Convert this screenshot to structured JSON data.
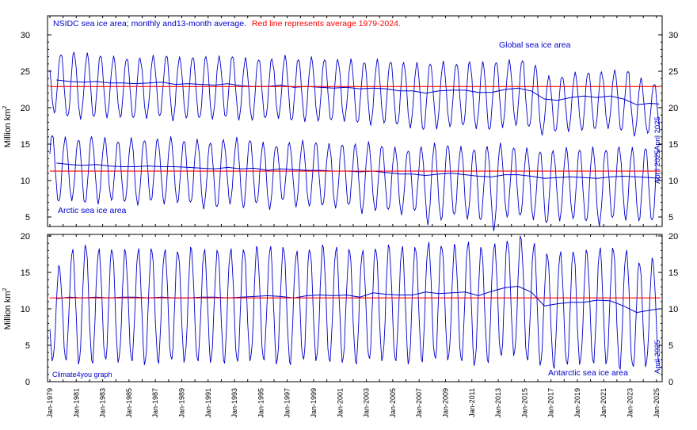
{
  "title": {
    "main": "NSIDC sea ice area; monthly and13-month average.",
    "red_note": "Red line represents average 1979-2024."
  },
  "credit": "Climate4you graph",
  "colors": {
    "series": "#0000cc",
    "average_line": "#ff0000",
    "axis": "#000000",
    "label_blue": "#0000cc"
  },
  "chart_data": [
    {
      "type": "line",
      "panel": "top",
      "ylabel": "Million km",
      "ylabel_sup": "2",
      "ylim": [
        5,
        30
      ],
      "yticks": [
        5,
        10,
        15,
        20,
        25,
        30
      ],
      "series": [
        {
          "name": "Global sea ice area",
          "end_label": "April 2025",
          "average_1979_2024": 22.9,
          "annual": {
            "years": [
              1979,
              1980,
              1981,
              1982,
              1983,
              1984,
              1985,
              1986,
              1987,
              1988,
              1989,
              1990,
              1991,
              1992,
              1993,
              1994,
              1995,
              1996,
              1997,
              1998,
              1999,
              2000,
              2001,
              2002,
              2003,
              2004,
              2005,
              2006,
              2007,
              2008,
              2009,
              2010,
              2011,
              2012,
              2013,
              2014,
              2015,
              2016,
              2017,
              2018,
              2019,
              2020,
              2021,
              2022,
              2023,
              2024,
              2025
            ],
            "max": [
              27.5,
              27.6,
              27.3,
              27.2,
              27.0,
              26.9,
              26.8,
              27.0,
              27.2,
              26.9,
              27.1,
              27.0,
              26.9,
              27.1,
              26.8,
              26.8,
              26.7,
              27.0,
              26.7,
              26.9,
              26.8,
              26.6,
              26.5,
              26.3,
              26.6,
              26.5,
              26.2,
              26.0,
              26.1,
              26.3,
              26.2,
              26.3,
              26.1,
              26.3,
              26.5,
              26.7,
              25.8,
              24.2,
              24.3,
              24.8,
              25.0,
              24.9,
              25.0,
              25.1,
              24.0,
              23.4,
              22.8
            ],
            "min": [
              19.3,
              18.6,
              18.5,
              18.7,
              18.8,
              18.7,
              18.4,
              18.6,
              18.8,
              18.4,
              18.6,
              18.4,
              18.5,
              18.7,
              18.5,
              18.3,
              18.4,
              18.6,
              18.2,
              18.3,
              18.2,
              18.1,
              18.2,
              17.9,
              17.8,
              17.9,
              17.5,
              17.3,
              16.9,
              17.3,
              17.4,
              17.4,
              17.2,
              16.9,
              17.5,
              17.6,
              17.2,
              16.3,
              16.7,
              16.9,
              16.9,
              16.9,
              17.2,
              16.8,
              16.3,
              16.5,
              16.4
            ],
            "avg13": [
              23.8,
              23.6,
              23.5,
              23.6,
              23.4,
              23.4,
              23.3,
              23.4,
              23.5,
              23.2,
              23.3,
              23.2,
              23.1,
              23.3,
              23.0,
              22.9,
              22.9,
              23.1,
              22.8,
              22.9,
              22.8,
              22.7,
              22.8,
              22.6,
              22.7,
              22.6,
              22.3,
              22.3,
              22.0,
              22.3,
              22.4,
              22.4,
              22.1,
              22.1,
              22.5,
              22.7,
              22.3,
              21.2,
              21.0,
              21.4,
              21.6,
              21.4,
              21.6,
              21.2,
              20.4,
              20.6,
              20.5
            ]
          }
        },
        {
          "name": "Arctic sea ice area",
          "end_label": "April 2025",
          "average_1979_2024": 11.3,
          "annual": {
            "years": [
              1979,
              1980,
              1981,
              1982,
              1983,
              1984,
              1985,
              1986,
              1987,
              1988,
              1989,
              1990,
              1991,
              1992,
              1993,
              1994,
              1995,
              1996,
              1997,
              1998,
              1999,
              2000,
              2001,
              2002,
              2003,
              2004,
              2005,
              2006,
              2007,
              2008,
              2009,
              2010,
              2011,
              2012,
              2013,
              2014,
              2015,
              2016,
              2017,
              2018,
              2019,
              2020,
              2021,
              2022,
              2023,
              2024,
              2025
            ],
            "max": [
              16.3,
              15.9,
              15.8,
              16.0,
              15.7,
              15.4,
              15.8,
              15.7,
              15.7,
              15.8,
              15.5,
              15.6,
              15.4,
              15.6,
              15.7,
              15.6,
              15.2,
              14.9,
              15.2,
              15.3,
              15.3,
              15.0,
              15.1,
              15.0,
              15.1,
              14.8,
              14.5,
              14.3,
              14.6,
              14.9,
              14.9,
              14.6,
              14.5,
              14.7,
              14.9,
              14.6,
              14.4,
              14.2,
              14.1,
              14.3,
              14.3,
              14.5,
              14.4,
              14.6,
              14.3,
              14.5,
              14.0
            ],
            "min": [
              6.9,
              7.3,
              6.9,
              7.0,
              7.3,
              6.9,
              6.7,
              7.2,
              7.0,
              7.0,
              6.8,
              6.2,
              6.3,
              7.0,
              6.3,
              6.7,
              6.1,
              7.3,
              6.6,
              6.5,
              6.4,
              6.3,
              6.6,
              5.7,
              5.9,
              5.8,
              5.4,
              5.8,
              4.2,
              4.6,
              5.1,
              4.8,
              4.5,
              3.4,
              5.0,
              5.0,
              4.7,
              4.1,
              4.7,
              4.8,
              4.2,
              3.9,
              4.8,
              4.8,
              4.5,
              4.3,
              12.5
            ],
            "avg13": [
              12.4,
              12.2,
              12.1,
              12.2,
              12.0,
              11.9,
              11.9,
              12.0,
              11.9,
              11.9,
              11.8,
              11.7,
              11.6,
              11.8,
              11.6,
              11.7,
              11.4,
              11.6,
              11.5,
              11.4,
              11.4,
              11.3,
              11.3,
              11.2,
              11.3,
              11.1,
              10.9,
              10.9,
              10.7,
              10.9,
              11.0,
              10.8,
              10.6,
              10.5,
              10.8,
              10.8,
              10.6,
              10.3,
              10.4,
              10.5,
              10.4,
              10.3,
              10.5,
              10.6,
              10.5,
              10.4,
              10.3
            ]
          }
        }
      ]
    },
    {
      "type": "line",
      "panel": "bottom",
      "ylabel": "Million km",
      "ylabel_sup": "2",
      "ylim": [
        0,
        20
      ],
      "yticks": [
        0,
        5,
        10,
        15,
        20
      ],
      "series": [
        {
          "name": "Antarctic sea ice area",
          "end_label": "April 2025",
          "average_1979_2024": 11.5,
          "annual": {
            "years": [
              1979,
              1980,
              1981,
              1982,
              1983,
              1984,
              1985,
              1986,
              1987,
              1988,
              1989,
              1990,
              1991,
              1992,
              1993,
              1994,
              1995,
              1996,
              1997,
              1998,
              1999,
              2000,
              2001,
              2002,
              2003,
              2004,
              2005,
              2006,
              2007,
              2008,
              2009,
              2010,
              2011,
              2012,
              2013,
              2014,
              2015,
              2016,
              2017,
              2018,
              2019,
              2020,
              2021,
              2022,
              2023,
              2024,
              2025
            ],
            "max": [
              15.8,
              18.0,
              18.8,
              18.3,
              18.4,
              18.0,
              18.1,
              18.3,
              18.2,
              18.1,
              18.3,
              18.0,
              18.1,
              18.3,
              18.4,
              18.4,
              18.4,
              18.5,
              18.0,
              18.4,
              18.6,
              18.3,
              18.2,
              18.1,
              18.5,
              18.6,
              18.4,
              18.5,
              19.2,
              18.9,
              18.7,
              19.0,
              18.5,
              19.0,
              19.6,
              19.8,
              18.8,
              17.6,
              17.9,
              18.1,
              17.9,
              18.2,
              18.4,
              18.1,
              16.6,
              16.8,
              17.0
            ],
            "min": [
              2.8,
              2.9,
              2.6,
              2.7,
              2.8,
              2.6,
              2.8,
              2.5,
              2.7,
              2.8,
              2.6,
              2.8,
              2.8,
              2.7,
              2.5,
              2.8,
              2.9,
              2.6,
              2.5,
              2.8,
              2.8,
              2.7,
              2.8,
              2.6,
              2.9,
              2.8,
              2.8,
              2.6,
              2.9,
              2.9,
              2.9,
              2.8,
              2.4,
              2.8,
              3.3,
              3.5,
              2.9,
              2.4,
              2.0,
              2.1,
              2.3,
              2.5,
              2.6,
              1.9,
              1.8,
              2.0,
              2.3
            ],
            "avg13": [
              11.4,
              11.6,
              11.5,
              11.6,
              11.5,
              11.6,
              11.6,
              11.5,
              11.6,
              11.5,
              11.5,
              11.6,
              11.6,
              11.5,
              11.6,
              11.7,
              11.8,
              11.7,
              11.5,
              11.8,
              11.9,
              11.8,
              11.9,
              11.6,
              12.2,
              12.0,
              11.9,
              11.9,
              12.3,
              12.1,
              12.2,
              12.3,
              11.8,
              12.4,
              12.9,
              13.1,
              12.3,
              10.4,
              10.7,
              10.9,
              10.9,
              11.2,
              11.1,
              10.4,
              9.5,
              9.8,
              10.0
            ]
          }
        }
      ]
    }
  ],
  "x_axis": {
    "tick_labels": [
      "Jan-1979",
      "Jan-1981",
      "Jan-1983",
      "Jan-1985",
      "Jan-1987",
      "Jan-1989",
      "Jan-1991",
      "Jan-1993",
      "Jan-1995",
      "Jan-1997",
      "Jan-1999",
      "Jan-2001",
      "Jan-2003",
      "Jan-2005",
      "Jan-2007",
      "Jan-2009",
      "Jan-2011",
      "Jan-2013",
      "Jan-2015",
      "Jan-2017",
      "Jan-2019",
      "Jan-2021",
      "Jan-2023",
      "Jan-2025"
    ],
    "range": [
      "Jan-1979",
      "Apr-2025"
    ]
  }
}
